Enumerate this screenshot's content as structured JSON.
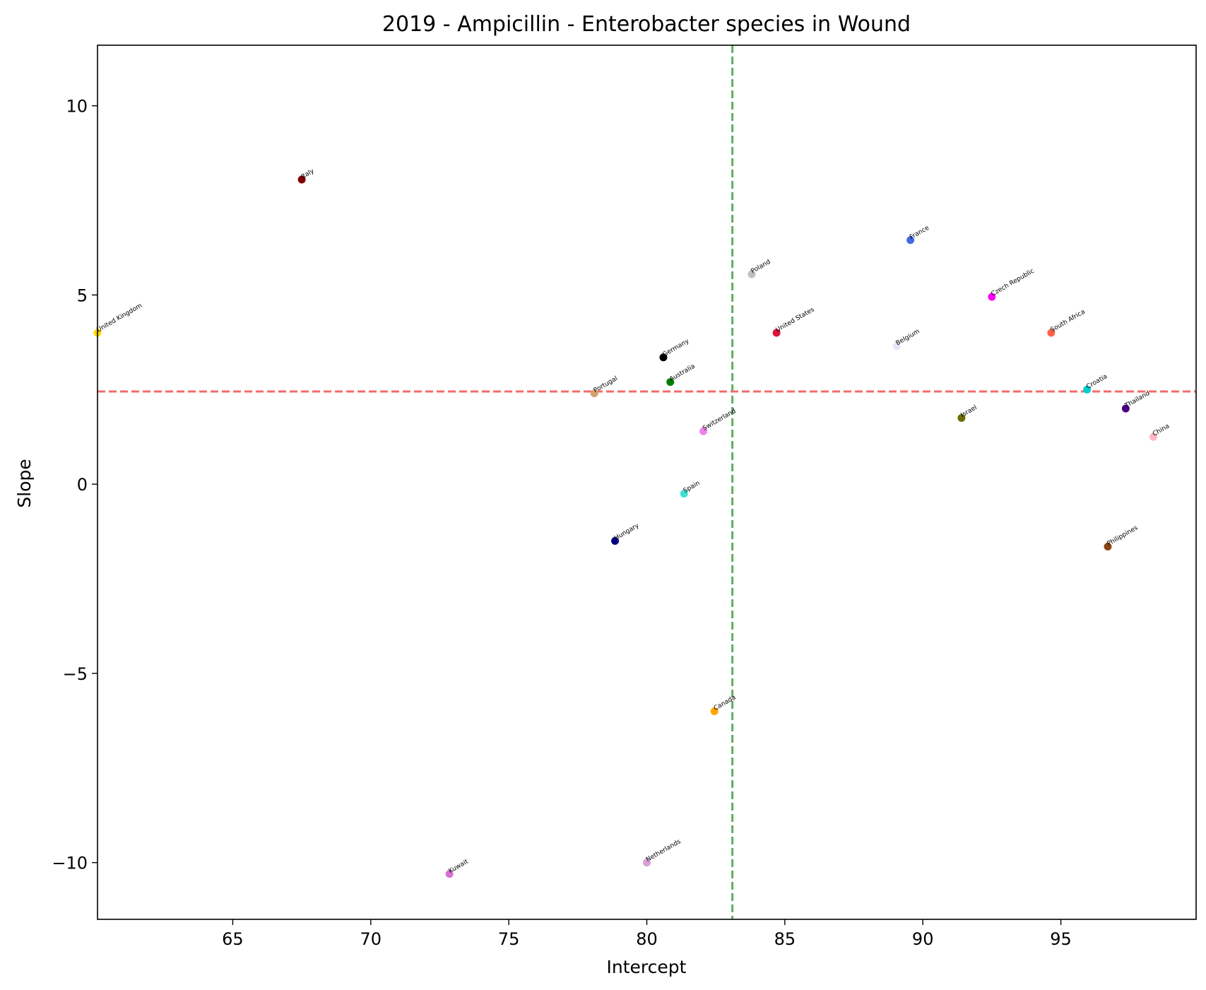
{
  "chart_data": {
    "type": "scatter",
    "title": "2019 - Ampicillin - Enterobacter species in Wound",
    "xlabel": "Intercept",
    "ylabel": "Slope",
    "xlim": [
      60.1,
      99.9
    ],
    "ylim": [
      -11.5,
      11.6
    ],
    "xticks": [
      65,
      70,
      75,
      80,
      85,
      90,
      95
    ],
    "yticks": [
      10,
      5,
      0,
      -5,
      -10
    ],
    "xtick_labels": [
      "65",
      "70",
      "75",
      "80",
      "85",
      "90",
      "95"
    ],
    "ytick_labels": [
      "10",
      "5",
      "0",
      "−5",
      "−10"
    ],
    "grid": false,
    "reference_lines": [
      {
        "orientation": "vertical",
        "value": 83.1,
        "color": "#5fae5f",
        "style": "dashed"
      },
      {
        "orientation": "horizontal",
        "value": 2.45,
        "color": "#f26b6b",
        "style": "dashed"
      }
    ],
    "points": [
      {
        "label": "Italy",
        "x": 67.5,
        "y": 8.05,
        "color": "#800000"
      },
      {
        "label": "United Kingdom",
        "x": 60.1,
        "y": 4.0,
        "color": "#ffd700"
      },
      {
        "label": "France",
        "x": 89.55,
        "y": 6.45,
        "color": "#4169e1"
      },
      {
        "label": "Poland",
        "x": 83.8,
        "y": 5.55,
        "color": "#c0c0c0"
      },
      {
        "label": "Czech Republic",
        "x": 92.5,
        "y": 4.95,
        "color": "#ff00ff"
      },
      {
        "label": "United States",
        "x": 84.7,
        "y": 4.0,
        "color": "#dc143c"
      },
      {
        "label": "South Africa",
        "x": 94.65,
        "y": 4.0,
        "color": "#ff6347"
      },
      {
        "label": "Belgium",
        "x": 89.05,
        "y": 3.65,
        "color": "#e6e6fa"
      },
      {
        "label": "Germany",
        "x": 80.6,
        "y": 3.35,
        "color": "#000000"
      },
      {
        "label": "Australia",
        "x": 80.85,
        "y": 2.7,
        "color": "#008000"
      },
      {
        "label": "Portugal",
        "x": 78.1,
        "y": 2.4,
        "color": "#d2a06e"
      },
      {
        "label": "Croatia",
        "x": 95.95,
        "y": 2.5,
        "color": "#00ced1"
      },
      {
        "label": "Thailand",
        "x": 97.35,
        "y": 2.0,
        "color": "#4b0082"
      },
      {
        "label": "Israel",
        "x": 91.4,
        "y": 1.75,
        "color": "#6b6b00"
      },
      {
        "label": "Switzerland",
        "x": 82.05,
        "y": 1.4,
        "color": "#ee82ee"
      },
      {
        "label": "China",
        "x": 98.35,
        "y": 1.25,
        "color": "#ffb6c1"
      },
      {
        "label": "Spain",
        "x": 81.35,
        "y": -0.25,
        "color": "#40e0d0"
      },
      {
        "label": "Hungary",
        "x": 78.85,
        "y": -1.5,
        "color": "#000080"
      },
      {
        "label": "Philippines",
        "x": 96.7,
        "y": -1.65,
        "color": "#8b4513"
      },
      {
        "label": "Canada",
        "x": 82.45,
        "y": -6.0,
        "color": "#ffa500"
      },
      {
        "label": "Netherlands",
        "x": 80.0,
        "y": -10.0,
        "color": "#d8a0d8"
      },
      {
        "label": "Kuwait",
        "x": 72.85,
        "y": -10.3,
        "color": "#da70d6"
      }
    ]
  }
}
